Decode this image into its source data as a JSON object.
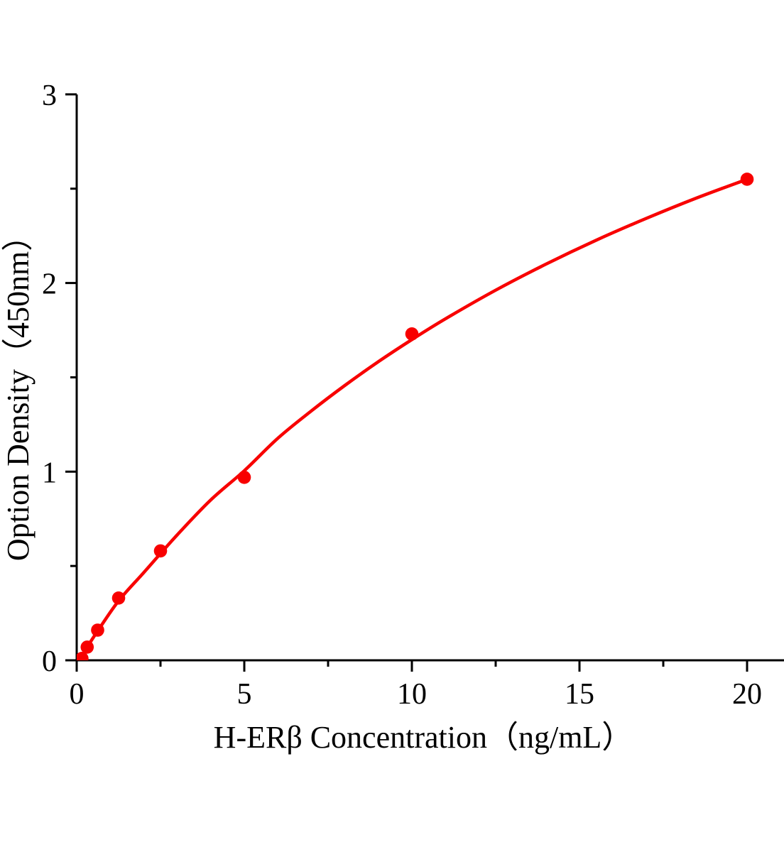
{
  "chart_data": {
    "type": "scatter",
    "title": "",
    "xlabel": "H-ERβ Concentration（ng/mL）",
    "ylabel": "Option Density（450nm）",
    "x": [
      0.156,
      0.313,
      0.625,
      1.25,
      2.5,
      5,
      10,
      20
    ],
    "y": [
      0.01,
      0.07,
      0.16,
      0.33,
      0.58,
      0.97,
      1.73,
      2.55
    ],
    "fit_curve": {
      "x": [
        0,
        0.156,
        0.313,
        0.625,
        1.25,
        2,
        3,
        4,
        5,
        6,
        7,
        8,
        9,
        10,
        11,
        12.5,
        14,
        15.5,
        17,
        18.5,
        20
      ],
      "y": [
        0,
        0.018,
        0.07,
        0.155,
        0.315,
        0.465,
        0.665,
        0.85,
        1.005,
        1.177,
        1.322,
        1.457,
        1.583,
        1.7,
        1.81,
        1.962,
        2.1,
        2.227,
        2.343,
        2.451,
        2.55
      ]
    },
    "xlim": [
      0,
      21.1
    ],
    "ylim": [
      0,
      3
    ],
    "x_ticks_major": [
      0,
      5,
      10,
      15,
      20
    ],
    "x_ticks_minor": [
      2.5,
      7.5,
      12.5,
      17.5
    ],
    "y_ticks_major": [
      0,
      1,
      2,
      3
    ],
    "y_ticks_minor": [
      0.5,
      1.5,
      2.5
    ],
    "grid": "off",
    "legend": "none",
    "colors": {
      "curve": "#f80000",
      "marker": "#f80000",
      "axis": "#000000"
    }
  }
}
